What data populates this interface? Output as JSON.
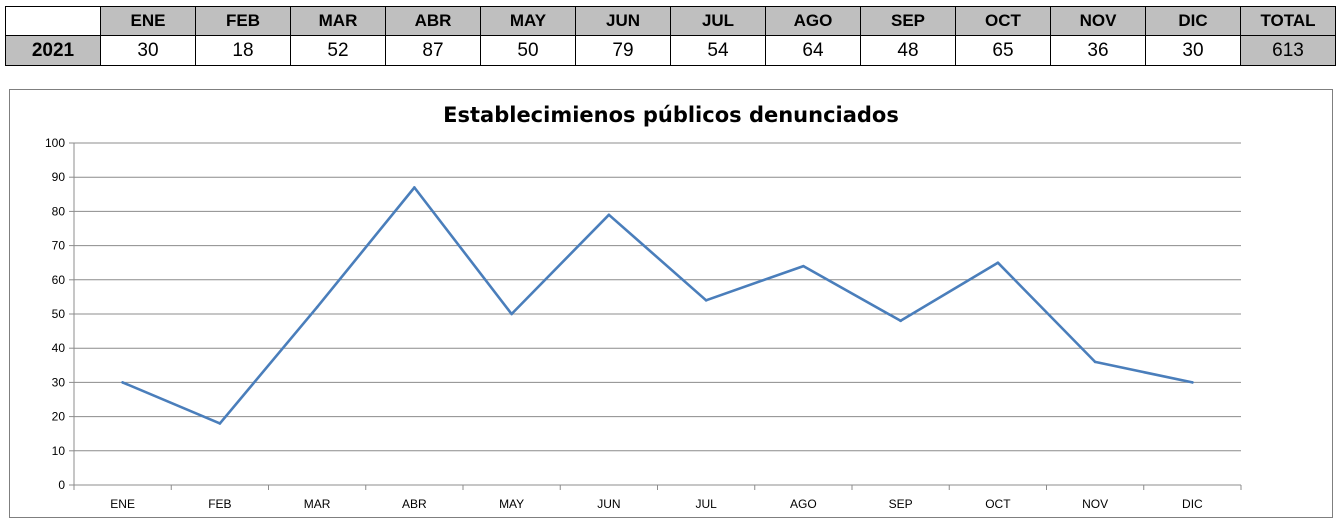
{
  "summary_table": {
    "month_headers": [
      "ENE",
      "FEB",
      "MAR",
      "ABR",
      "MAY",
      "JUN",
      "JUL",
      "AGO",
      "SEP",
      "OCT",
      "NOV",
      "DIC"
    ],
    "total_header": "TOTAL",
    "year": "2021",
    "values": [
      "30",
      "18",
      "52",
      "87",
      "50",
      "79",
      "54",
      "64",
      "48",
      "65",
      "36",
      "30"
    ],
    "total": "613"
  },
  "chart_data": {
    "type": "line",
    "title": "Establecimienos públicos denunciados",
    "categories": [
      "ENE",
      "FEB",
      "MAR",
      "ABR",
      "MAY",
      "JUN",
      "JUL",
      "AGO",
      "SEP",
      "OCT",
      "NOV",
      "DIC"
    ],
    "series": [
      {
        "values": [
          30,
          18,
          52,
          87,
          50,
          79,
          54,
          64,
          48,
          65,
          36,
          30
        ]
      }
    ],
    "ylim": [
      0,
      100
    ],
    "yticks": [
      0,
      10,
      20,
      30,
      40,
      50,
      60,
      70,
      80,
      90,
      100
    ],
    "grid": true,
    "legend": "none",
    "line_color": "#4a7ebb",
    "grid_color": "#8c8c8c"
  }
}
